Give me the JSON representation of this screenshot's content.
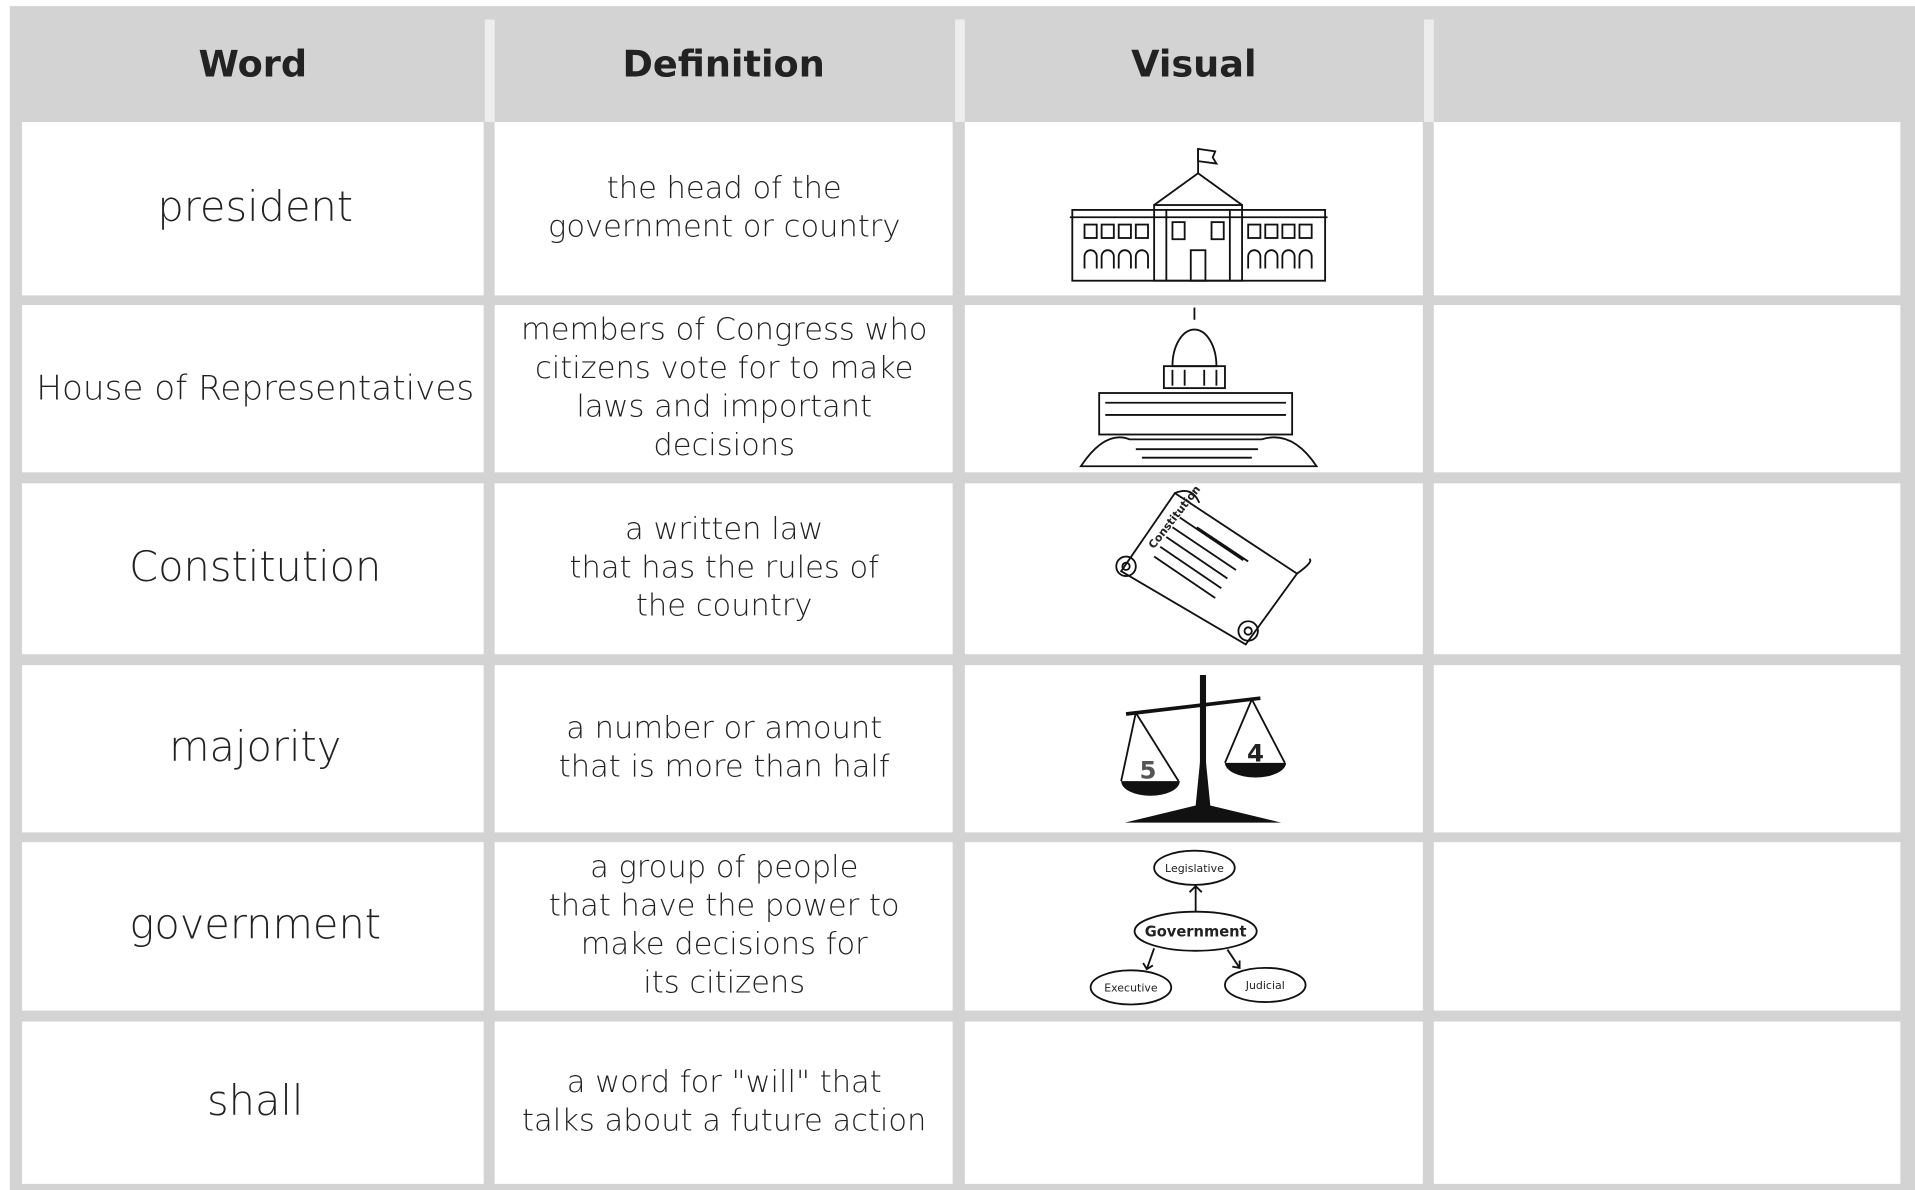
{
  "header": {
    "columns": [
      "Word",
      "Definition",
      "Visual"
    ]
  },
  "table": {
    "rows": [
      {
        "word": "president",
        "definition": [
          "the head of the",
          "government or country"
        ]
      },
      {
        "word": "House of Representatives",
        "definition": [
          "members of Congress who",
          "citizens vote for to make",
          "laws and important",
          "decisions"
        ]
      },
      {
        "word": "Constitution",
        "definition": [
          "a written law",
          "that has the rules of",
          "the country"
        ],
        "visual_labels": [
          "Constitution"
        ]
      },
      {
        "word": "majority",
        "definition": [
          "a number or amount",
          "that is more than half"
        ],
        "visual_labels": [
          "5",
          "4"
        ]
      },
      {
        "word": "government",
        "definition": [
          "a group of people",
          "that have the power to",
          "make decisions for",
          "its citizens"
        ],
        "visual_labels": [
          "Legislative",
          "Government",
          "Executive",
          "Judicial"
        ]
      },
      {
        "word": "shall",
        "definition": [
          "a word for \"will\" that",
          "talks about a future action"
        ]
      }
    ]
  }
}
